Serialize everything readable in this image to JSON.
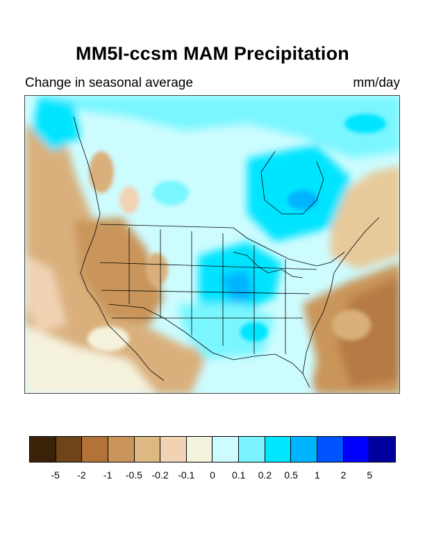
{
  "header": {
    "title": "MM5I-ccsm MAM Precipitation",
    "subtitle_left": "Change in seasonal average",
    "subtitle_right": "mm/day"
  },
  "map": {
    "region": "North America",
    "colors": {
      "land_dry": "#d9b07c",
      "land_mid": "#e8c99a",
      "land_neutral": "#f5f2dc",
      "wet_light": "#cdfcff",
      "wet_mid": "#7af6ff",
      "wet_strong": "#00e4ff",
      "wet_deep": "#00b4ff",
      "dry_deep": "#b67a44",
      "boundary": "#000000"
    }
  },
  "legend": {
    "colors": [
      "#3a2208",
      "#6f4418",
      "#b37238",
      "#c9955a",
      "#dcb983",
      "#f1d2b3",
      "#f4f3dd",
      "#cdfcff",
      "#7bf4ff",
      "#00e6ff",
      "#00b4ff",
      "#0054ff",
      "#0000ff",
      "#00009c"
    ],
    "tick_labels": [
      "-5",
      "-2",
      "-1",
      "-0.5",
      "-0.2",
      "-0.1",
      "0",
      "0.1",
      "0.2",
      "0.5",
      "1",
      "2",
      "5"
    ]
  }
}
